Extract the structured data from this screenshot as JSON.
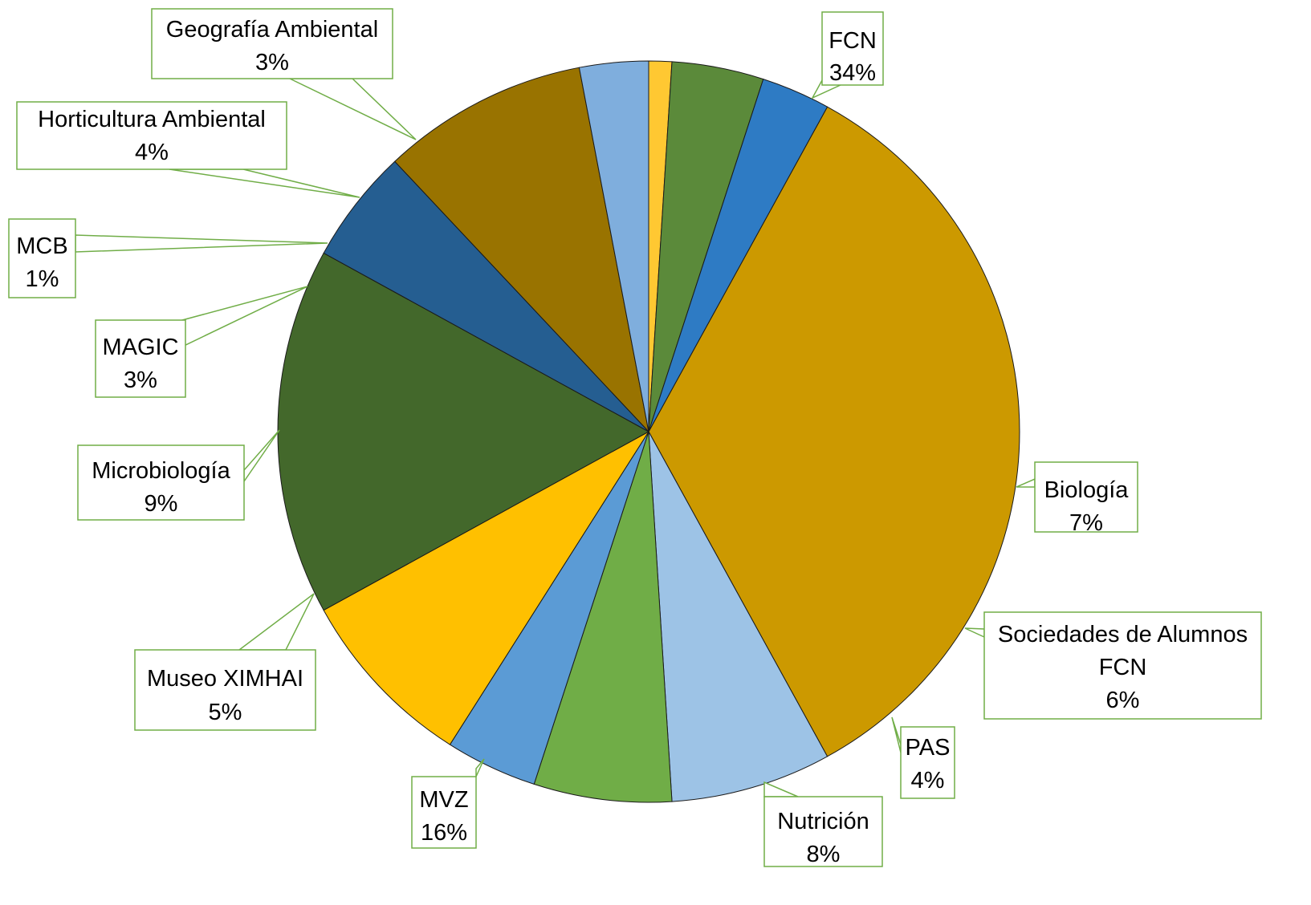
{
  "chart_data": {
    "type": "pie",
    "title": "",
    "legend": "none",
    "slices": [
      {
        "name": "FCN",
        "label_lines": [
          "FCN",
          "34%"
        ],
        "value": 34,
        "color": "#CC9900"
      },
      {
        "name": "Biología",
        "label_lines": [
          "Biología",
          "7%"
        ],
        "value": 7,
        "color": "#9DC3E6"
      },
      {
        "name": "Sociedades de Alumnos FCN",
        "label_lines": [
          "Sociedades de Alumnos",
          "FCN",
          "6%"
        ],
        "value": 6,
        "color": "#70AD47"
      },
      {
        "name": "PAS",
        "label_lines": [
          "PAS",
          "4%"
        ],
        "value": 4,
        "color": "#5B9BD5"
      },
      {
        "name": "Nutrición",
        "label_lines": [
          "Nutrición",
          "8%"
        ],
        "value": 8,
        "color": "#FFC000"
      },
      {
        "name": "MVZ",
        "label_lines": [
          "MVZ",
          "16%"
        ],
        "value": 16,
        "color": "#43682B"
      },
      {
        "name": "Museo XIMHAI",
        "label_lines": [
          "Museo XIMHAI",
          "5%"
        ],
        "value": 5,
        "color": "#255E91"
      },
      {
        "name": "Microbiología",
        "label_lines": [
          "Microbiología",
          "9%"
        ],
        "value": 9,
        "color": "#997300"
      },
      {
        "name": "MAGIC",
        "label_lines": [
          "MAGIC",
          "3%"
        ],
        "value": 3,
        "color": "#7FAEDD"
      },
      {
        "name": "MCB",
        "label_lines": [
          "MCB",
          "1%"
        ],
        "value": 1,
        "color": "#FFC832"
      },
      {
        "name": "Horticultura Ambiental",
        "label_lines": [
          "Horticultura Ambiental",
          "4%"
        ],
        "value": 4,
        "color": "#5B8A3A"
      },
      {
        "name": "Geografía Ambiental",
        "label_lines": [
          "Geografía Ambiental",
          "3%"
        ],
        "value": 3,
        "color": "#2E7BC4"
      }
    ],
    "label_box_color": "#70AD47"
  }
}
